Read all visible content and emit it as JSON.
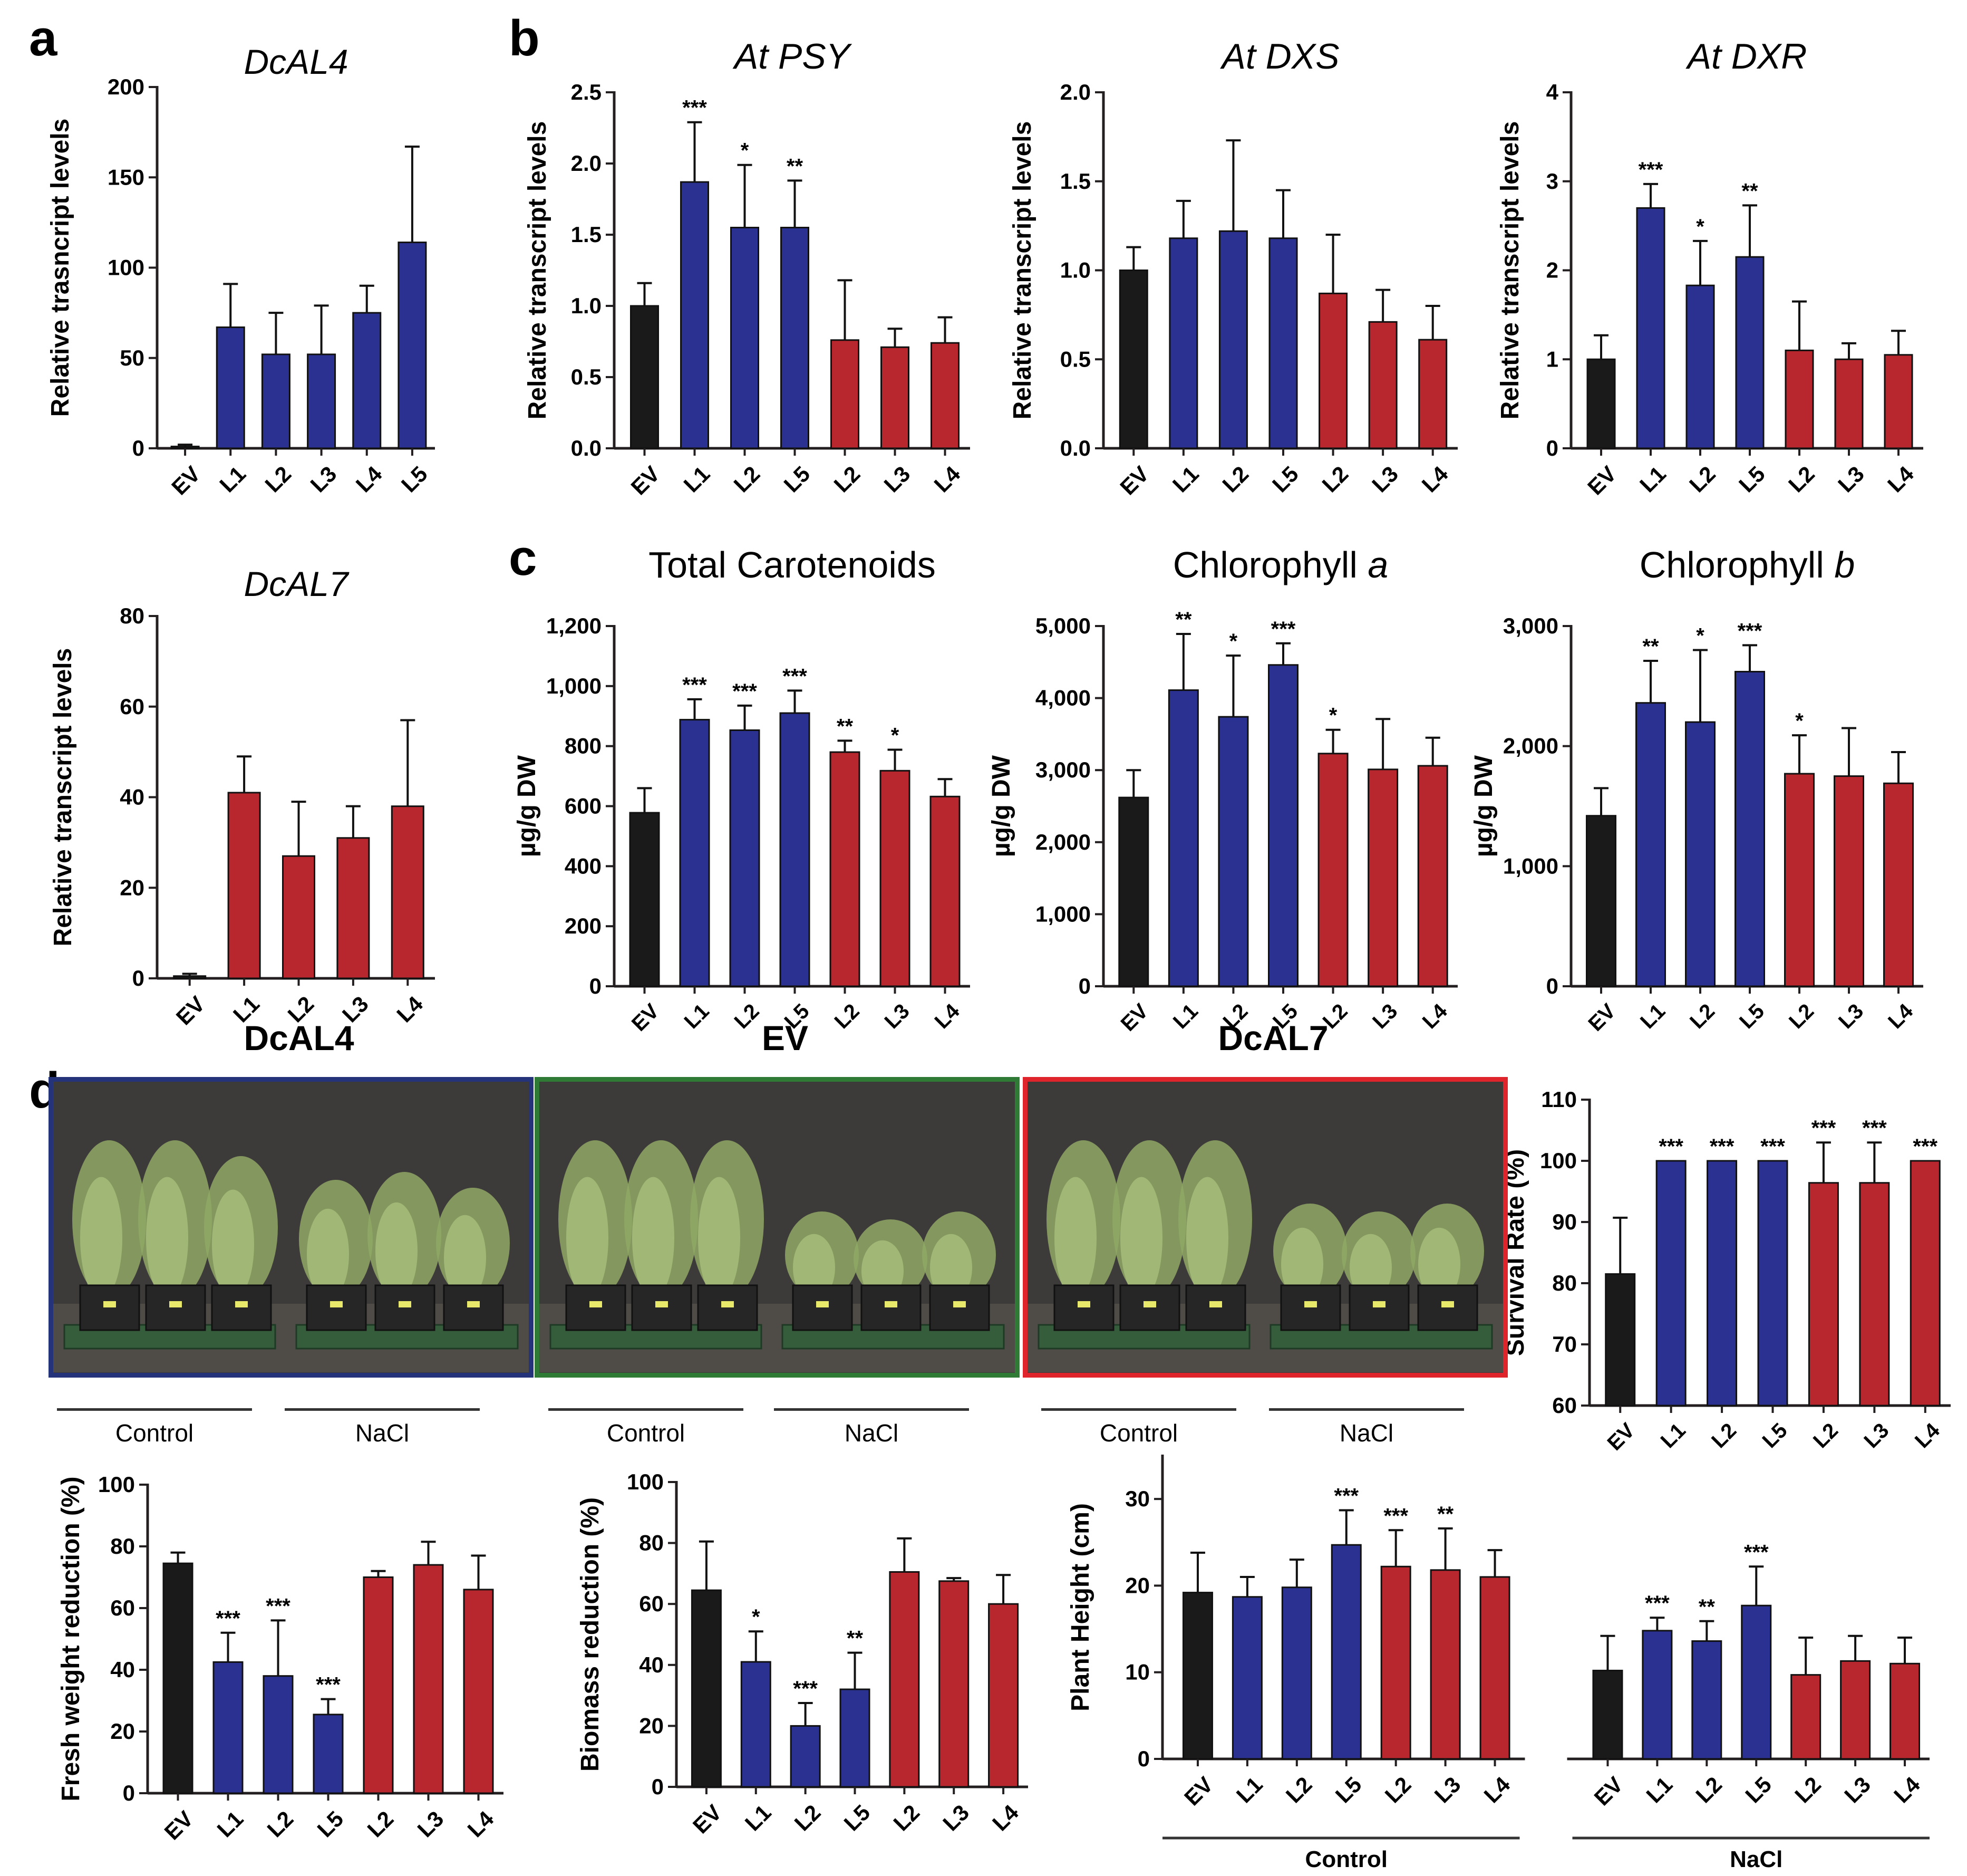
{
  "colors": {
    "ev": "#1a1a1a",
    "blue": "#2b3191",
    "red": "#b8272e",
    "axis": "#231f20"
  },
  "panels": {
    "a": "a",
    "b": "b",
    "c": "c",
    "d": "d"
  },
  "photos": [
    {
      "title": "DcAL4",
      "control_label": "Control",
      "nacl_label": "NaCl",
      "border": "#25347a"
    },
    {
      "title": "EV",
      "control_label": "Control",
      "nacl_label": "NaCl",
      "border": "#2f7a35"
    },
    {
      "title": "DcAL7",
      "control_label": "Control",
      "nacl_label": "NaCl",
      "border": "#e0242b"
    }
  ],
  "chart_data": [
    {
      "type": "bar",
      "title": "DcAL4",
      "title_italic": true,
      "ylabel": "Relative trasncript levels",
      "categories": [
        "EV",
        "L1",
        "L2",
        "L3",
        "L4",
        "L5"
      ],
      "bar_colors": [
        "ev",
        "blue",
        "blue",
        "blue",
        "blue",
        "blue"
      ],
      "values": [
        1,
        67,
        52,
        52,
        75,
        114
      ],
      "errors": [
        1,
        24,
        23,
        27,
        15,
        53
      ],
      "sig": [
        "",
        "",
        "",
        "",
        "",
        ""
      ],
      "ylim": [
        0,
        200
      ],
      "yticks": [
        0,
        50,
        100,
        150,
        200
      ],
      "ytick_labels": [
        "0",
        "50",
        "100",
        "150",
        "200"
      ]
    },
    {
      "type": "bar",
      "title": "DcAL7",
      "title_italic": true,
      "ylabel": "Relative transcript levels",
      "categories": [
        "EV",
        "L1",
        "L2",
        "L3",
        "L4"
      ],
      "bar_colors": [
        "ev",
        "red",
        "red",
        "red",
        "red"
      ],
      "values": [
        0.5,
        41,
        27,
        31,
        38
      ],
      "errors": [
        0.5,
        8,
        12,
        7,
        19
      ],
      "sig": [
        "",
        "",
        "",
        "",
        ""
      ],
      "ylim": [
        0,
        80
      ],
      "yticks": [
        0,
        20,
        40,
        60,
        80
      ],
      "ytick_labels": [
        "0",
        "20",
        "40",
        "60",
        "80"
      ]
    },
    {
      "type": "bar",
      "title": "At PSY",
      "title_italic": true,
      "ylabel": "Relative transcript levels",
      "categories": [
        "EV",
        "L1",
        "L2",
        "L5",
        "L2",
        "L3",
        "L4"
      ],
      "bar_colors": [
        "ev",
        "blue",
        "blue",
        "blue",
        "red",
        "red",
        "red"
      ],
      "values": [
        1.0,
        1.87,
        1.55,
        1.55,
        0.76,
        0.71,
        0.74
      ],
      "errors": [
        0.16,
        0.42,
        0.44,
        0.33,
        0.42,
        0.13,
        0.18
      ],
      "sig": [
        "",
        "***",
        "*",
        "**",
        "",
        "",
        ""
      ],
      "ylim": [
        0,
        2.5
      ],
      "yticks": [
        0,
        0.5,
        1.0,
        1.5,
        2.0,
        2.5
      ],
      "ytick_labels": [
        "0.0",
        "0.5",
        "1.0",
        "1.5",
        "2.0",
        "2.5"
      ]
    },
    {
      "type": "bar",
      "title": "At DXS",
      "title_italic": true,
      "ylabel": "Relative transcript levels",
      "categories": [
        "EV",
        "L1",
        "L2",
        "L5",
        "L2",
        "L3",
        "L4"
      ],
      "bar_colors": [
        "ev",
        "blue",
        "blue",
        "blue",
        "red",
        "red",
        "red"
      ],
      "values": [
        1.0,
        1.18,
        1.22,
        1.18,
        0.87,
        0.71,
        0.61
      ],
      "errors": [
        0.13,
        0.21,
        0.51,
        0.27,
        0.33,
        0.18,
        0.19
      ],
      "sig": [
        "",
        "",
        "",
        "",
        "",
        "",
        ""
      ],
      "ylim": [
        0,
        2.0
      ],
      "yticks": [
        0,
        0.5,
        1.0,
        1.5,
        2.0
      ],
      "ytick_labels": [
        "0.0",
        "0.5",
        "1.0",
        "1.5",
        "2.0"
      ]
    },
    {
      "type": "bar",
      "title": "At DXR",
      "title_italic": true,
      "ylabel": "Relative transcript levels",
      "categories": [
        "EV",
        "L1",
        "L2",
        "L5",
        "L2",
        "L3",
        "L4"
      ],
      "bar_colors": [
        "ev",
        "blue",
        "blue",
        "blue",
        "red",
        "red",
        "red"
      ],
      "values": [
        1.0,
        2.7,
        1.83,
        2.15,
        1.1,
        1.0,
        1.05
      ],
      "errors": [
        0.27,
        0.27,
        0.5,
        0.58,
        0.55,
        0.18,
        0.27
      ],
      "sig": [
        "",
        "***",
        "*",
        "**",
        "",
        "",
        ""
      ],
      "ylim": [
        0,
        4
      ],
      "yticks": [
        0,
        1,
        2,
        3,
        4
      ],
      "ytick_labels": [
        "0",
        "1",
        "2",
        "3",
        "4"
      ]
    },
    {
      "type": "bar",
      "title": "Total Carotenoids",
      "title_italic": false,
      "ylabel": "µg/g DW",
      "categories": [
        "EV",
        "L1",
        "L2",
        "L5",
        "L2",
        "L3",
        "L4"
      ],
      "bar_colors": [
        "ev",
        "blue",
        "blue",
        "blue",
        "red",
        "red",
        "red"
      ],
      "values": [
        578,
        888,
        853,
        910,
        780,
        718,
        632
      ],
      "errors": [
        82,
        68,
        82,
        75,
        38,
        70,
        58
      ],
      "sig": [
        "",
        "***",
        "***",
        "***",
        "**",
        "*",
        ""
      ],
      "ylim": [
        0,
        1200
      ],
      "yticks": [
        0,
        200,
        400,
        600,
        800,
        1000,
        1200
      ],
      "ytick_labels": [
        "0",
        "200",
        "400",
        "600",
        "800",
        "1,000",
        "1,200"
      ]
    },
    {
      "type": "bar",
      "title": "Chlorophyll a",
      "title_italic": false,
      "title_italic_suffix": "a",
      "ylabel": "µg/g DW",
      "categories": [
        "EV",
        "L1",
        "L2",
        "L5",
        "L2",
        "L3",
        "L4"
      ],
      "bar_colors": [
        "ev",
        "blue",
        "blue",
        "blue",
        "red",
        "red",
        "red"
      ],
      "values": [
        2620,
        4110,
        3740,
        4460,
        3230,
        3010,
        3060
      ],
      "errors": [
        380,
        780,
        850,
        300,
        330,
        700,
        390
      ],
      "sig": [
        "",
        "**",
        "*",
        "***",
        "*",
        "",
        ""
      ],
      "ylim": [
        0,
        5000
      ],
      "yticks": [
        0,
        1000,
        2000,
        3000,
        4000,
        5000
      ],
      "ytick_labels": [
        "0",
        "1,000",
        "2,000",
        "3,000",
        "4,000",
        "5,000"
      ]
    },
    {
      "type": "bar",
      "title": "Chlorophyll b",
      "title_italic": false,
      "title_italic_suffix": "b",
      "ylabel": "µg/g DW",
      "categories": [
        "EV",
        "L1",
        "L2",
        "L5",
        "L2",
        "L3",
        "L4"
      ],
      "bar_colors": [
        "ev",
        "blue",
        "blue",
        "blue",
        "red",
        "red",
        "red"
      ],
      "values": [
        1420,
        2360,
        2200,
        2620,
        1770,
        1750,
        1690
      ],
      "errors": [
        230,
        350,
        600,
        220,
        320,
        400,
        260
      ],
      "sig": [
        "",
        "**",
        "*",
        "***",
        "*",
        "",
        ""
      ],
      "ylim": [
        0,
        3000
      ],
      "yticks": [
        0,
        1000,
        2000,
        3000
      ],
      "ytick_labels": [
        "0",
        "1,000",
        "2,000",
        "3,000"
      ]
    },
    {
      "type": "bar",
      "title": "",
      "ylabel": "Survival Rate (%)",
      "categories": [
        "EV",
        "L1",
        "L2",
        "L5",
        "L2",
        "L3",
        "L4"
      ],
      "bar_colors": [
        "ev",
        "blue",
        "blue",
        "blue",
        "red",
        "red",
        "red"
      ],
      "values": [
        81.5,
        100,
        100,
        100,
        96.4,
        96.4,
        100
      ],
      "errors": [
        9.2,
        0,
        0,
        0,
        6.6,
        6.6,
        0
      ],
      "sig": [
        "",
        "***",
        "***",
        "***",
        "***",
        "***",
        "***"
      ],
      "ylim": [
        60,
        110
      ],
      "yticks": [
        60,
        70,
        80,
        90,
        100,
        110
      ],
      "ytick_labels": [
        "60",
        "70",
        "80",
        "90",
        "100",
        "110"
      ]
    },
    {
      "type": "bar",
      "title": "",
      "ylabel": "Fresh weight reduction (%)",
      "categories": [
        "EV",
        "L1",
        "L2",
        "L5",
        "L2",
        "L3",
        "L4"
      ],
      "bar_colors": [
        "ev",
        "blue",
        "blue",
        "blue",
        "red",
        "red",
        "red"
      ],
      "values": [
        74.5,
        42.5,
        38,
        25.5,
        70,
        74,
        66
      ],
      "errors": [
        3.5,
        9.5,
        18,
        5,
        2,
        7.5,
        11
      ],
      "sig": [
        "",
        "***",
        "***",
        "***",
        "",
        "",
        ""
      ],
      "ylim": [
        0,
        100
      ],
      "yticks": [
        0,
        20,
        40,
        60,
        80,
        100
      ],
      "ytick_labels": [
        "0",
        "20",
        "40",
        "60",
        "80",
        "100"
      ]
    },
    {
      "type": "bar",
      "title": "",
      "ylabel": "Biomass reduction (%)",
      "categories": [
        "EV",
        "L1",
        "L2",
        "L5",
        "L2",
        "L3",
        "L4"
      ],
      "bar_colors": [
        "ev",
        "blue",
        "blue",
        "blue",
        "red",
        "red",
        "red"
      ],
      "values": [
        64.5,
        41,
        20,
        32,
        70.5,
        67.5,
        60
      ],
      "errors": [
        16,
        10,
        7.5,
        12,
        11,
        1,
        9.5
      ],
      "sig": [
        "",
        "*",
        "***",
        "**",
        "",
        "",
        ""
      ],
      "ylim": [
        0,
        100
      ],
      "yticks": [
        0,
        20,
        40,
        60,
        80,
        100
      ],
      "ytick_labels": [
        "0",
        "20",
        "40",
        "60",
        "80",
        "100"
      ]
    },
    {
      "type": "bar",
      "title": "",
      "ylabel": "Plant Height (cm)",
      "groups": [
        {
          "label": "Control",
          "categories": [
            "EV",
            "L1",
            "L2",
            "L5",
            "L2",
            "L3",
            "L4"
          ],
          "bar_colors": [
            "ev",
            "blue",
            "blue",
            "blue",
            "red",
            "red",
            "red"
          ],
          "values": [
            19.2,
            18.7,
            19.8,
            24.7,
            22.2,
            21.8,
            21
          ],
          "errors": [
            4.6,
            2.3,
            3.2,
            4,
            4.2,
            4.8,
            3.1
          ],
          "sig": [
            "",
            "",
            "",
            "***",
            "***",
            "**",
            ""
          ]
        },
        {
          "label": "NaCl",
          "categories": [
            "EV",
            "L1",
            "L2",
            "L5",
            "L2",
            "L3",
            "L4"
          ],
          "bar_colors": [
            "ev",
            "blue",
            "blue",
            "blue",
            "red",
            "red",
            "red"
          ],
          "values": [
            10.2,
            14.8,
            13.6,
            17.7,
            9.7,
            11.3,
            11
          ],
          "errors": [
            4,
            1.5,
            2.3,
            4.5,
            4.3,
            2.9,
            3
          ],
          "sig": [
            "",
            "***",
            "**",
            "***",
            "",
            "",
            ""
          ]
        }
      ],
      "ylim": [
        0,
        35
      ],
      "yticks": [
        0,
        10,
        20,
        30
      ],
      "ytick_labels": [
        "0",
        "10",
        "20",
        "30"
      ]
    }
  ]
}
